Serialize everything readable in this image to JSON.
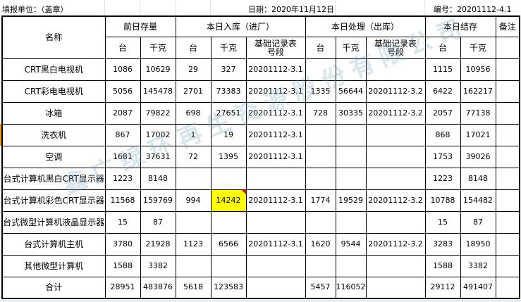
{
  "header": {
    "unit_label": "填报单位：（盖章）",
    "date_label": "日期：2020年11月12日",
    "number_label": "编号：20201112-4.1"
  },
  "columns": {
    "name": "名称",
    "prev": "前日存量",
    "in": "本日入库（进厂）",
    "out": "本日处理（出库）",
    "end": "本日结存",
    "remark": "备注",
    "unit_count": "台",
    "unit_kg": "千克",
    "record_no": "基础记录表号段"
  },
  "rows": [
    {
      "name": "CRT黑白电视机",
      "prev_count": "1086",
      "prev_kg": "10629",
      "in_count": "29",
      "in_kg": "327",
      "in_record": "20201112-3.1",
      "out_count": "",
      "out_kg": "",
      "out_record": "",
      "end_count": "1115",
      "end_kg": "10956",
      "remark": ""
    },
    {
      "name": "CRT彩电电视机",
      "prev_count": "5056",
      "prev_kg": "145478",
      "in_count": "2701",
      "in_kg": "73383",
      "in_record": "20201112-3.1",
      "out_count": "1335",
      "out_kg": "56644",
      "out_record": "20201112-3.2",
      "end_count": "6422",
      "end_kg": "162217",
      "remark": ""
    },
    {
      "name": "冰箱",
      "prev_count": "2087",
      "prev_kg": "79822",
      "in_count": "698",
      "in_kg": "27651",
      "in_record": "20201112-3.1",
      "out_count": "728",
      "out_kg": "30335",
      "out_record": "20201112-3.2",
      "end_count": "2057",
      "end_kg": "77138",
      "remark": ""
    },
    {
      "name": "洗衣机",
      "prev_count": "867",
      "prev_kg": "17002",
      "in_count": "1",
      "in_kg": "19",
      "in_record": "20201112-3.1",
      "out_count": "",
      "out_kg": "",
      "out_record": "",
      "end_count": "868",
      "end_kg": "17021",
      "remark": ""
    },
    {
      "name": "空调",
      "prev_count": "1681",
      "prev_kg": "37631",
      "in_count": "72",
      "in_kg": "1395",
      "in_record": "20201112-3.1",
      "out_count": "",
      "out_kg": "",
      "out_record": "",
      "end_count": "1753",
      "end_kg": "39026",
      "remark": ""
    },
    {
      "name": "台式计算机黑白CRT显示器",
      "prev_count": "1223",
      "prev_kg": "8148",
      "in_count": "",
      "in_kg": "",
      "in_record": "",
      "out_count": "",
      "out_kg": "",
      "out_record": "",
      "end_count": "1223",
      "end_kg": "8148",
      "remark": ""
    },
    {
      "name": "台式计算机彩色CRT显示器",
      "prev_count": "11568",
      "prev_kg": "159769",
      "in_count": "994",
      "in_kg": "14242",
      "in_record": "20201112-3.1",
      "out_count": "1774",
      "out_kg": "19529",
      "out_record": "20201112-3.2",
      "end_count": "10788",
      "end_kg": "154482",
      "remark": "",
      "highlight": "in_kg"
    },
    {
      "name": "台式微型计算机液晶显示器",
      "prev_count": "15",
      "prev_kg": "87",
      "in_count": "",
      "in_kg": "",
      "in_record": "",
      "out_count": "",
      "out_kg": "",
      "out_record": "",
      "end_count": "15",
      "end_kg": "87",
      "remark": ""
    },
    {
      "name": "台式计算机主机",
      "prev_count": "3780",
      "prev_kg": "21928",
      "in_count": "1123",
      "in_kg": "6566",
      "in_record": "20201112-3.1",
      "out_count": "1620",
      "out_kg": "9544",
      "out_record": "20201112-3.2",
      "end_count": "3283",
      "end_kg": "18950",
      "remark": ""
    },
    {
      "name": "其他微型计算机",
      "prev_count": "1588",
      "prev_kg": "3382",
      "in_count": "",
      "in_kg": "",
      "in_record": "",
      "out_count": "",
      "out_kg": "",
      "out_record": "",
      "end_count": "1588",
      "end_kg": "3382",
      "remark": ""
    },
    {
      "name": "合计",
      "prev_count": "28951",
      "prev_kg": "483876",
      "in_count": "5618",
      "in_kg": "123583",
      "in_record": "",
      "out_count": "5457",
      "out_kg": "116052",
      "out_record": "",
      "end_count": "29112",
      "end_kg": "491407",
      "remark": ""
    }
  ],
  "watermark": "鑫广绿环再生资源股份有限公司",
  "colors": {
    "highlight": "#ffff00",
    "comment_marker": "#ff0000"
  }
}
